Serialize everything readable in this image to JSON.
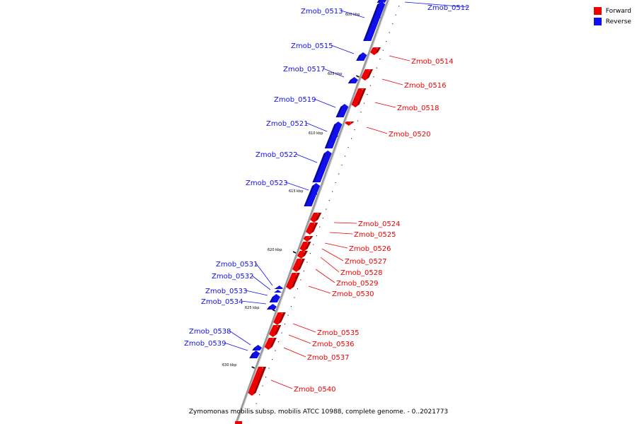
{
  "legend": {
    "items": [
      {
        "label": "Forward",
        "color": "#ee0000"
      },
      {
        "label": "Reverse",
        "color": "#1010ee"
      }
    ]
  },
  "caption": "Zymomonas mobilis subsp. mobilis ATCC 10988, complete genome. - 0..2021773",
  "colors": {
    "forward": "#ee0000",
    "reverse": "#1010ee",
    "backbone": "#999999"
  },
  "kbp_markers": [
    {
      "kbp": 600,
      "label": "600 kbp"
    },
    {
      "kbp": 605,
      "label": "605 kbp"
    },
    {
      "kbp": 610,
      "label": "610 kbp"
    },
    {
      "kbp": 615,
      "label": "615 kbp"
    },
    {
      "kbp": 620,
      "label": "620 kbp"
    },
    {
      "kbp": 625,
      "label": "625 kbp"
    },
    {
      "kbp": 630,
      "label": "630 kbp"
    }
  ],
  "genes": [
    {
      "name": "Zmob_0512",
      "strand": "reverse"
    },
    {
      "name": "Zmob_0513",
      "strand": "reverse"
    },
    {
      "name": "Zmob_0514",
      "strand": "forward"
    },
    {
      "name": "Zmob_0515",
      "strand": "reverse"
    },
    {
      "name": "Zmob_0516",
      "strand": "forward"
    },
    {
      "name": "Zmob_0517",
      "strand": "reverse"
    },
    {
      "name": "Zmob_0518",
      "strand": "forward"
    },
    {
      "name": "Zmob_0519",
      "strand": "reverse"
    },
    {
      "name": "Zmob_0520",
      "strand": "forward"
    },
    {
      "name": "Zmob_0521",
      "strand": "reverse"
    },
    {
      "name": "Zmob_0522",
      "strand": "reverse"
    },
    {
      "name": "Zmob_0523",
      "strand": "reverse"
    },
    {
      "name": "Zmob_0524",
      "strand": "forward"
    },
    {
      "name": "Zmob_0525",
      "strand": "forward"
    },
    {
      "name": "Zmob_0526",
      "strand": "forward"
    },
    {
      "name": "Zmob_0527",
      "strand": "forward"
    },
    {
      "name": "Zmob_0528",
      "strand": "forward"
    },
    {
      "name": "Zmob_0529",
      "strand": "forward"
    },
    {
      "name": "Zmob_0530",
      "strand": "forward"
    },
    {
      "name": "Zmob_0531",
      "strand": "reverse"
    },
    {
      "name": "Zmob_0532",
      "strand": "reverse"
    },
    {
      "name": "Zmob_0533",
      "strand": "reverse"
    },
    {
      "name": "Zmob_0534",
      "strand": "reverse"
    },
    {
      "name": "Zmob_0535",
      "strand": "forward"
    },
    {
      "name": "Zmob_0536",
      "strand": "forward"
    },
    {
      "name": "Zmob_0537",
      "strand": "forward"
    },
    {
      "name": "Zmob_0538",
      "strand": "reverse"
    },
    {
      "name": "Zmob_0539",
      "strand": "reverse"
    },
    {
      "name": "Zmob_0540",
      "strand": "forward"
    }
  ]
}
